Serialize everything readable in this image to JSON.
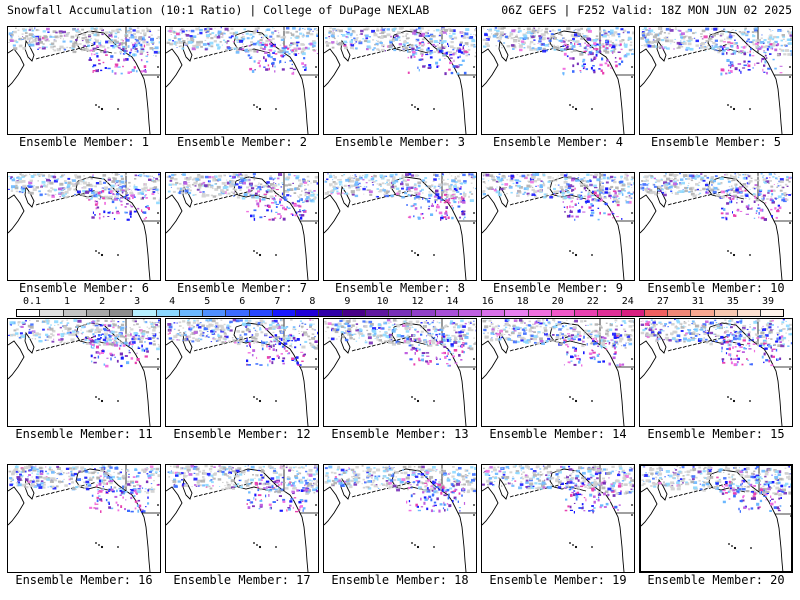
{
  "header": {
    "left": "Snowfall Accumulation (10:1 Ratio) | College of DuPage NEXLAB",
    "right": "06Z GEFS | F252 Valid: 18Z MON JUN 02 2025"
  },
  "member_label_prefix": "Ensemble Member:",
  "members": [
    1,
    2,
    3,
    4,
    5,
    6,
    7,
    8,
    9,
    10,
    11,
    12,
    13,
    14,
    15,
    16,
    17,
    18,
    19,
    20
  ],
  "colorbar": {
    "labels": [
      "0.1",
      "1",
      "2",
      "3",
      "4",
      "5",
      "6",
      "7",
      "8",
      "9",
      "10",
      "12",
      "14",
      "16",
      "18",
      "20",
      "22",
      "24",
      "27",
      "31",
      "35",
      "39"
    ],
    "colors": [
      "#ffffff",
      "#e0e0e0",
      "#c4c4c4",
      "#a8a8a8",
      "#8c8c8c",
      "#b8f0ff",
      "#8cd8ff",
      "#6cb8ff",
      "#5090ff",
      "#3c6cff",
      "#2848ff",
      "#1818ff",
      "#2000d8",
      "#3000a8",
      "#480088",
      "#6018a0",
      "#7830b8",
      "#9040c8",
      "#a850d8",
      "#c060e0",
      "#d870e8",
      "#e880f0",
      "#f070e0",
      "#f058c8",
      "#e840b0",
      "#e03098",
      "#d82080",
      "#f06060",
      "#f08878",
      "#f8a890",
      "#f8c8b0",
      "#fce0d0",
      "#fff4ec"
    ]
  },
  "icons": {
    "basemap": "north-pacific-coastline-map",
    "snow_overlay": "snowfall-shading"
  }
}
